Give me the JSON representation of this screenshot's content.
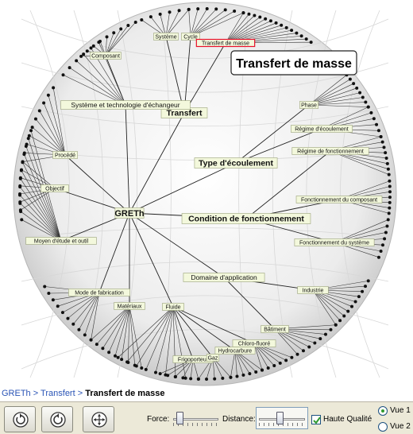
{
  "graph": {
    "root": "GRETh",
    "selected_title": "Transfert de masse",
    "nodes": [
      {
        "id": "greth",
        "label": "GRETh",
        "style": "root"
      },
      {
        "id": "transfert",
        "label": "Transfert",
        "style": "major"
      },
      {
        "id": "type-ecoulement",
        "label": "Type d'écoulement",
        "style": "major"
      },
      {
        "id": "condition-fonct",
        "label": "Condition de fonctionnement",
        "style": "major"
      },
      {
        "id": "domaine-app",
        "label": "Domaine d'application",
        "style": "medium"
      },
      {
        "id": "systeme-techno",
        "label": "Système et technologie d'échangeur",
        "style": "medium"
      },
      {
        "id": "systeme",
        "label": "Système",
        "style": "small"
      },
      {
        "id": "cycle",
        "label": "Cycle",
        "style": "small"
      },
      {
        "id": "transfert-masse",
        "label": "Transfert de masse",
        "style": "selected"
      },
      {
        "id": "composant",
        "label": "Composant",
        "style": "small"
      },
      {
        "id": "phase",
        "label": "Phase",
        "style": "small"
      },
      {
        "id": "regime-ecoulement",
        "label": "Régime d'écoulement",
        "style": "small"
      },
      {
        "id": "regime-fonct",
        "label": "Régime de fonctionnement",
        "style": "small"
      },
      {
        "id": "fonct-composant",
        "label": "Fonctionnement du composant",
        "style": "small"
      },
      {
        "id": "fonct-systeme",
        "label": "Fonctionnement du système",
        "style": "small"
      },
      {
        "id": "procede",
        "label": "Procédé",
        "style": "small"
      },
      {
        "id": "objectif",
        "label": "Objectif",
        "style": "small"
      },
      {
        "id": "moyen-etude",
        "label": "Moyen d'étude et outil",
        "style": "small"
      },
      {
        "id": "mode-fabrication",
        "label": "Mode de fabrication",
        "style": "small"
      },
      {
        "id": "materiaux",
        "label": "Matériaux",
        "style": "small"
      },
      {
        "id": "fluide",
        "label": "Fluide",
        "style": "small"
      },
      {
        "id": "industrie",
        "label": "Industrie",
        "style": "small"
      },
      {
        "id": "batiment",
        "label": "Bâtiment",
        "style": "small"
      },
      {
        "id": "chloro-fluore",
        "label": "Chloro-fluoré",
        "style": "small"
      },
      {
        "id": "hydrocarbure",
        "label": "Hydrocarbure",
        "style": "small"
      },
      {
        "id": "frigoporteur",
        "label": "Frigoporteur",
        "style": "small"
      },
      {
        "id": "gaz",
        "label": "Gaz",
        "style": "small"
      }
    ]
  },
  "callout": {
    "text": "Transfert de masse"
  },
  "breadcrumb": {
    "items": [
      "GRETh",
      "Transfert"
    ],
    "separator": ">",
    "current": "Transfert de masse"
  },
  "toolbar": {
    "rotate_left_icon": "rotate-left-icon",
    "rotate_right_icon": "rotate-right-icon",
    "center_icon": "center-target-icon",
    "force_label": "Force:",
    "force_value": 0.08,
    "distance_label": "Distance:",
    "distance_value": 0.45,
    "quality_label": "Haute Qualité",
    "quality_checked": true,
    "vue1_label": "Vue 1",
    "vue2_label": "Vue 2",
    "selected_view": "Vue 1"
  },
  "colors": {
    "selected_border": "#e8102a",
    "label_bg": "#f3f8dc",
    "link": "#2a54b6"
  }
}
